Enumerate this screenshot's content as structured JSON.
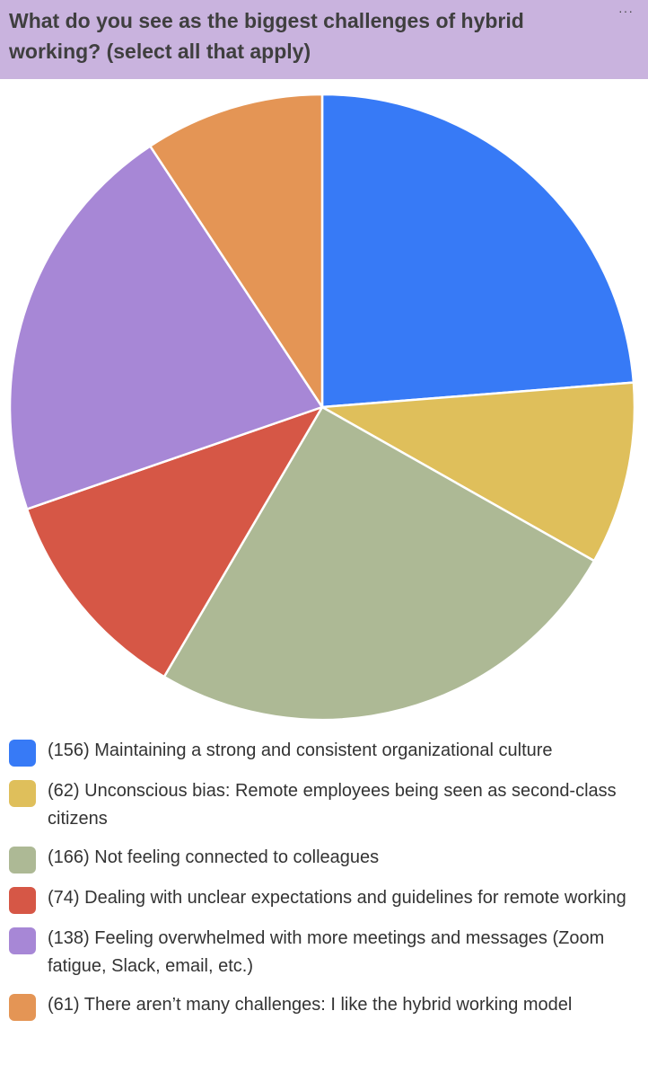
{
  "header": {
    "title": "What do you see as the biggest challenges of hybrid working? (select all that apply)",
    "more_label": "···"
  },
  "colors": {
    "header_bg": "#c9b3de",
    "slice_border": "#ffffff"
  },
  "chart_data": {
    "type": "pie",
    "title": "What do you see as the biggest challenges of hybrid working? (select all that apply)",
    "legend_position": "bottom",
    "slices": [
      {
        "label": "(156) Maintaining a strong and consistent organizational culture",
        "value": 156,
        "color": "#377af6"
      },
      {
        "label": "(62) Unconscious bias: Remote employees being seen as second-class citizens",
        "value": 62,
        "color": "#dfbf5b"
      },
      {
        "label": "(166) Not feeling connected to colleagues",
        "value": 166,
        "color": "#adb995"
      },
      {
        "label": "(74) Dealing with unclear expectations and guidelines for remote working",
        "value": 74,
        "color": "#d65746"
      },
      {
        "label": "(138) Feeling overwhelmed with more meetings and messages (Zoom fatigue, Slack, email, etc.)",
        "value": 138,
        "color": "#a787d6"
      },
      {
        "label": "(61) There aren’t many challenges: I like the hybrid working model",
        "value": 61,
        "color": "#e49555"
      }
    ]
  }
}
